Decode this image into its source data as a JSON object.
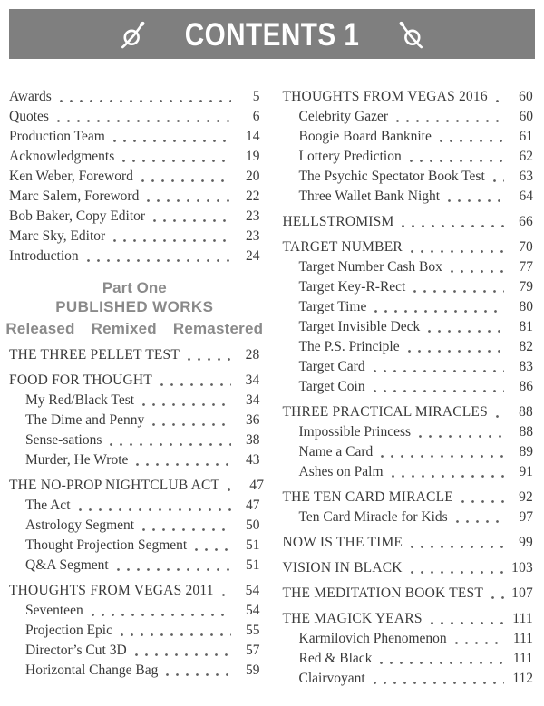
{
  "colors": {
    "header_bg": "#7f7f7f",
    "header_text": "#ffffff",
    "accent_gray": "#8a8a8a",
    "text": "#3a3a3a",
    "dot": "#5f5f5f",
    "background": "#ffffff"
  },
  "header": {
    "title": "CONTENTS 1",
    "left_ornament": "crossed-loop-swash",
    "right_ornament": "crossed-loop-swash-mirrored"
  },
  "divider": {
    "part": "Part One",
    "title": "PUBLISHED WORKS",
    "subtitle_words": [
      "Released",
      "Remixed",
      "Remastered"
    ]
  },
  "left_column": [
    {
      "style": "item",
      "label": "Awards",
      "page": "5"
    },
    {
      "style": "item",
      "label": "Quotes",
      "page": "6"
    },
    {
      "style": "item",
      "label": "Production Team",
      "page": "14"
    },
    {
      "style": "item",
      "label": "Acknowledgments",
      "page": "19"
    },
    {
      "style": "item",
      "label": "Ken Weber, Foreword",
      "page": "20"
    },
    {
      "style": "item",
      "label": "Marc Salem, Foreword",
      "page": "22"
    },
    {
      "style": "item",
      "label": "Bob Baker, Copy Editor",
      "page": "23"
    },
    {
      "style": "item",
      "label": "Marc Sky, Editor",
      "page": "23"
    },
    {
      "style": "item",
      "label": "Introduction",
      "page": "24"
    },
    {
      "divider": true
    },
    {
      "style": "section",
      "label": "THE THREE PELLET TEST",
      "page": "28"
    },
    {
      "style": "section",
      "label": "FOOD FOR THOUGHT",
      "page": "34"
    },
    {
      "style": "sub",
      "label": "My Red/Black Test",
      "page": "34"
    },
    {
      "style": "sub",
      "label": "The Dime and Penny",
      "page": "36"
    },
    {
      "style": "sub",
      "label": "Sense-sations",
      "page": "38"
    },
    {
      "style": "sub",
      "label": "Murder, He Wrote",
      "page": "43"
    },
    {
      "style": "section",
      "label": "THE NO-PROP NIGHTCLUB ACT",
      "page": "47"
    },
    {
      "style": "sub",
      "label": "The Act",
      "page": "47"
    },
    {
      "style": "sub",
      "label": "Astrology Segment",
      "page": "50"
    },
    {
      "style": "sub",
      "label": "Thought Projection Segment",
      "page": "51"
    },
    {
      "style": "sub",
      "label": "Q&A Segment",
      "page": "51"
    },
    {
      "style": "section",
      "label": "THOUGHTS FROM VEGAS 2011",
      "page": "54"
    },
    {
      "style": "sub",
      "label": "Seventeen",
      "page": "54"
    },
    {
      "style": "sub",
      "label": "Projection Epic",
      "page": "55"
    },
    {
      "style": "sub",
      "label": "Director’s Cut 3D",
      "page": "57"
    },
    {
      "style": "sub",
      "label": "Horizontal Change Bag",
      "page": "59"
    }
  ],
  "right_column": [
    {
      "style": "section",
      "label": "THOUGHTS FROM VEGAS 2016",
      "page": "60"
    },
    {
      "style": "sub",
      "label": "Celebrity Gazer",
      "page": "60"
    },
    {
      "style": "sub",
      "label": "Boogie Board Banknite",
      "page": "61"
    },
    {
      "style": "sub",
      "label": "Lottery Prediction",
      "page": "62"
    },
    {
      "style": "sub",
      "label": "The Psychic Spectator Book Test",
      "page": "63"
    },
    {
      "style": "sub",
      "label": "Three Wallet Bank Night",
      "page": "64"
    },
    {
      "style": "section",
      "label": "HELLSTROMISM",
      "page": "66"
    },
    {
      "style": "section",
      "label": "TARGET NUMBER",
      "page": "70"
    },
    {
      "style": "sub",
      "label": "Target Number Cash Box",
      "page": "77"
    },
    {
      "style": "sub",
      "label": "Target Key-R-Rect",
      "page": "79"
    },
    {
      "style": "sub",
      "label": "Target Time",
      "page": "80"
    },
    {
      "style": "sub",
      "label": "Target Invisible Deck",
      "page": "81"
    },
    {
      "style": "sub",
      "label": "The P.S. Principle",
      "page": "82"
    },
    {
      "style": "sub",
      "label": "Target Card",
      "page": "83"
    },
    {
      "style": "sub",
      "label": "Target Coin",
      "page": "86"
    },
    {
      "style": "section",
      "label": "THREE PRACTICAL MIRACLES",
      "page": "88"
    },
    {
      "style": "sub",
      "label": "Impossible Princess",
      "page": "88"
    },
    {
      "style": "sub",
      "label": "Name a Card",
      "page": "89"
    },
    {
      "style": "sub",
      "label": "Ashes on Palm",
      "page": "91"
    },
    {
      "style": "section",
      "label": "THE TEN CARD MIRACLE",
      "page": "92"
    },
    {
      "style": "sub",
      "label": "Ten Card Miracle for Kids",
      "page": "97"
    },
    {
      "style": "section",
      "label": "NOW IS THE TIME",
      "page": "99"
    },
    {
      "style": "section",
      "label": "VISION IN BLACK",
      "page": "103"
    },
    {
      "style": "section",
      "label": "THE MEDITATION BOOK TEST",
      "page": "107"
    },
    {
      "style": "section",
      "label": "THE MAGICK YEARS",
      "page": "111"
    },
    {
      "style": "sub",
      "label": "Karmilovich Phenomenon",
      "page": "111"
    },
    {
      "style": "sub",
      "label": "Red & Black",
      "page": "111"
    },
    {
      "style": "sub",
      "label": "Clairvoyant",
      "page": "112"
    }
  ]
}
